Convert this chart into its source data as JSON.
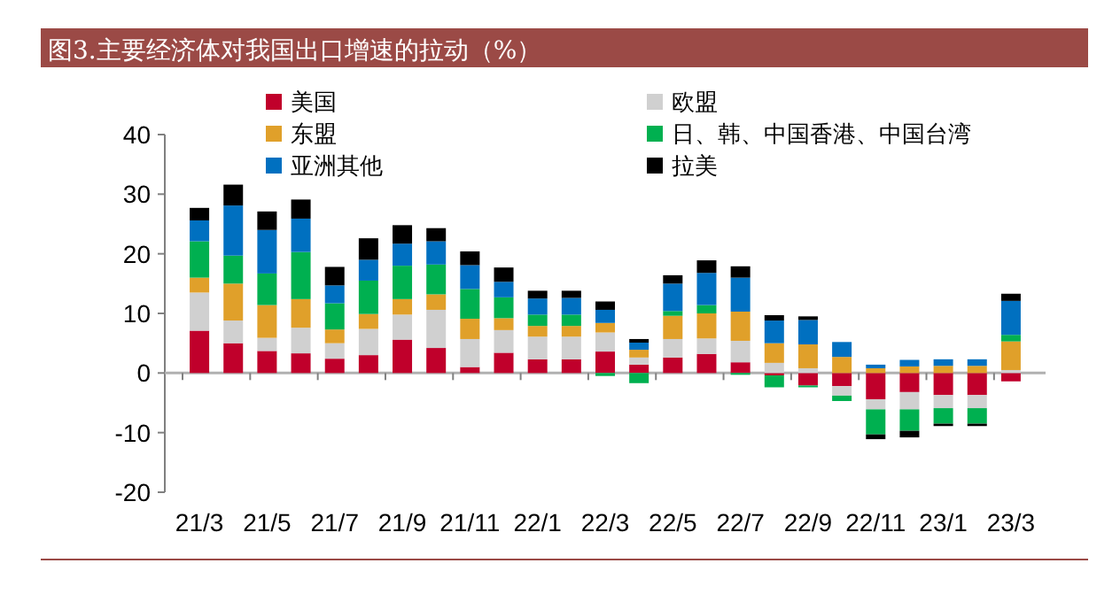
{
  "chart_data": {
    "type": "bar",
    "stacked": true,
    "title": "图3.主要经济体对我国出口增速的拉动（%）",
    "categories": [
      "21/3",
      null,
      "21/5",
      null,
      "21/7",
      null,
      "21/9",
      null,
      "21/11",
      null,
      "22/1",
      null,
      "22/3",
      null,
      "22/5",
      null,
      "22/7",
      null,
      "22/9",
      null,
      "22/11",
      null,
      "23/1",
      null,
      "23/3"
    ],
    "series": [
      {
        "name": "美国",
        "color": "#c0002b",
        "values": [
          7.1,
          5.0,
          3.7,
          3.3,
          2.4,
          3.0,
          5.6,
          4.2,
          1.0,
          3.4,
          2.3,
          2.3,
          3.6,
          1.4,
          2.6,
          3.2,
          1.8,
          -0.4,
          -2.1,
          -2.2,
          -4.4,
          -3.2,
          -3.7,
          -3.7,
          -1.4
        ]
      },
      {
        "name": "欧盟",
        "color": "#d0d0d0",
        "values": [
          6.4,
          3.8,
          2.2,
          4.3,
          2.6,
          4.4,
          4.2,
          6.4,
          4.7,
          3.8,
          3.8,
          3.8,
          3.2,
          1.2,
          3.1,
          2.6,
          3.6,
          1.7,
          0.8,
          -1.6,
          -1.7,
          -2.9,
          -2.2,
          -2.2,
          0.5
        ]
      },
      {
        "name": "东盟",
        "color": "#e0a02a",
        "values": [
          2.5,
          6.2,
          5.5,
          4.8,
          2.3,
          2.5,
          2.6,
          2.6,
          3.4,
          2.0,
          1.8,
          1.8,
          1.6,
          1.3,
          3.9,
          4.2,
          4.9,
          3.3,
          4.0,
          2.7,
          0.8,
          1.1,
          1.2,
          1.2,
          4.8
        ]
      },
      {
        "name": "日、韩、中国香港、中国台湾",
        "color": "#00b050",
        "values": [
          6.1,
          4.7,
          5.3,
          7.9,
          4.4,
          5.6,
          5.6,
          5.0,
          5.0,
          3.5,
          1.9,
          1.9,
          -0.5,
          -1.7,
          0.8,
          1.4,
          -0.3,
          -2.0,
          -0.3,
          -0.9,
          -4.2,
          -3.6,
          -2.6,
          -2.6,
          1.1
        ]
      },
      {
        "name": "亚洲其他",
        "color": "#0070c0",
        "values": [
          3.5,
          8.4,
          7.3,
          5.6,
          3.0,
          3.5,
          3.7,
          3.9,
          4.0,
          2.6,
          2.7,
          2.8,
          2.2,
          1.2,
          4.6,
          5.4,
          5.7,
          3.8,
          4.1,
          2.5,
          0.6,
          1.1,
          1.1,
          1.1,
          5.7
        ]
      },
      {
        "name": "拉美",
        "color": "#000000",
        "values": [
          2.1,
          3.5,
          3.1,
          3.2,
          3.1,
          3.6,
          3.1,
          2.2,
          2.3,
          2.4,
          1.3,
          1.2,
          1.4,
          0.6,
          1.4,
          2.1,
          1.9,
          0.9,
          0.6,
          null,
          -0.8,
          -1.1,
          -0.4,
          -0.4,
          1.2
        ]
      }
    ],
    "ylim": [
      -20,
      40
    ],
    "yticks": [
      -20,
      -10,
      0,
      10,
      20,
      30,
      40
    ],
    "legend": "top"
  }
}
